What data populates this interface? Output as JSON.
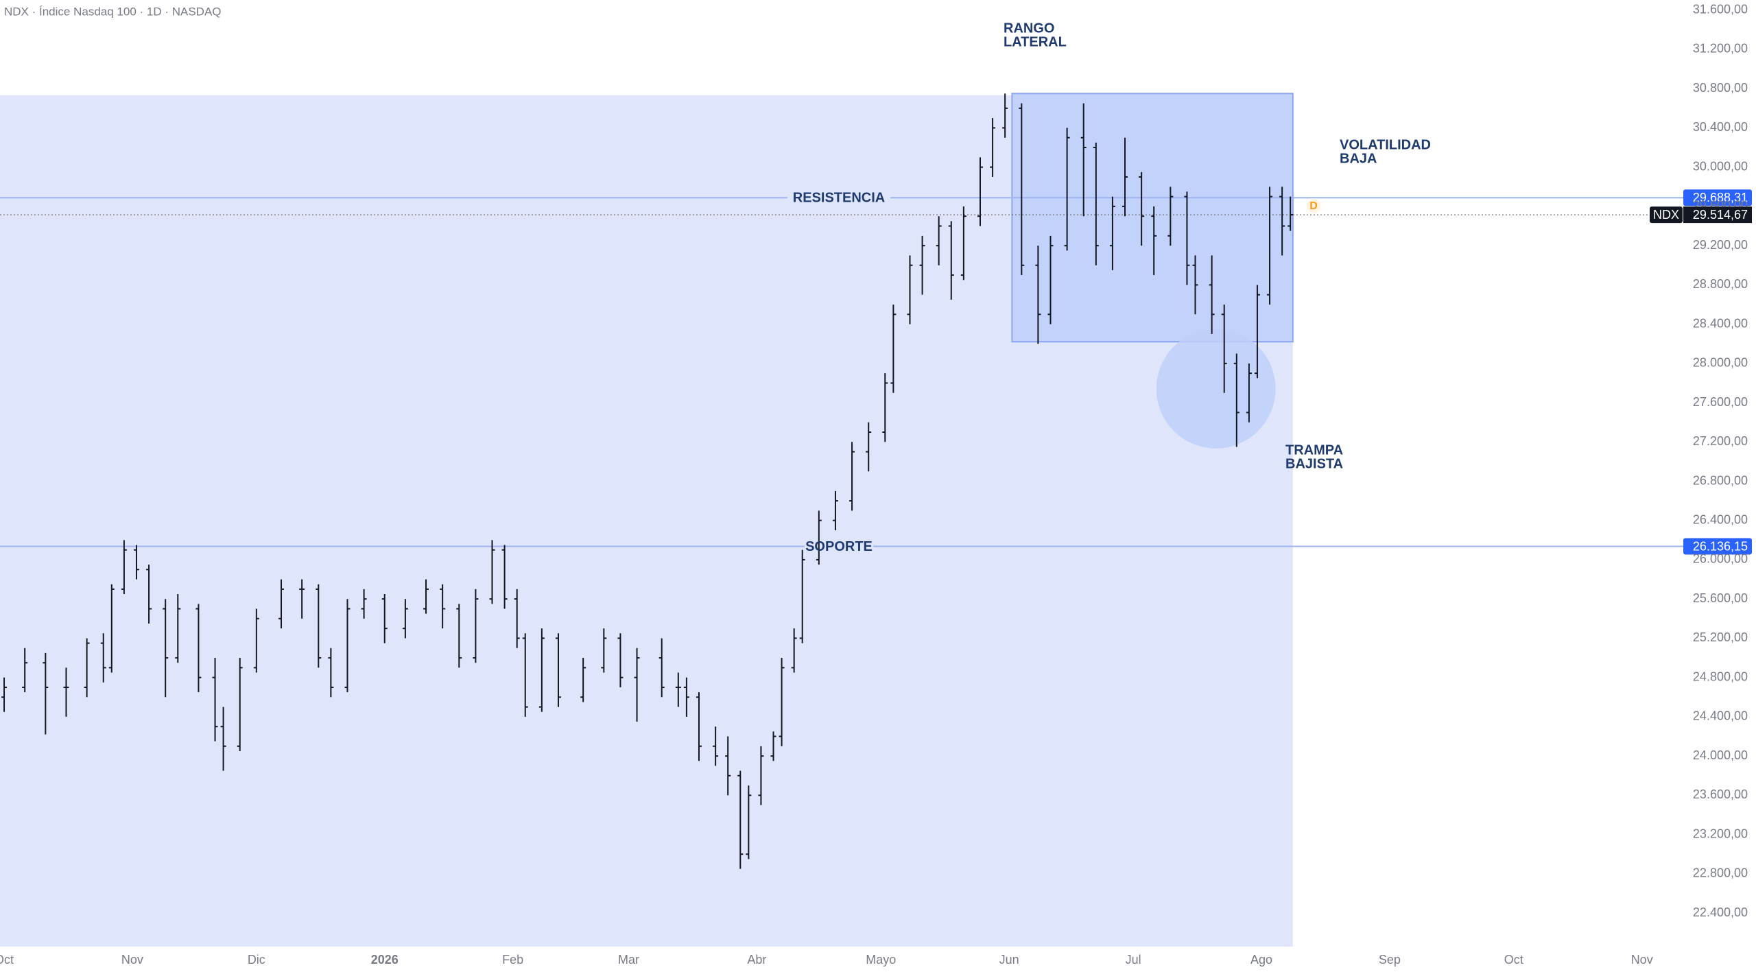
{
  "chart_data": {
    "type": "ohlc",
    "title": "NDX · Índice Nasdaq 100 · 1D · NASDAQ",
    "xlim": [
      -1,
      406
    ],
    "ylim": [
      22058,
      31703
    ],
    "xticks": [
      {
        "value": 0,
        "label": "Oct"
      },
      {
        "value": 31,
        "label": "Nov"
      },
      {
        "value": 61,
        "label": "Dic"
      },
      {
        "value": 92,
        "label": "2026"
      },
      {
        "value": 123,
        "label": "Feb"
      },
      {
        "value": 151,
        "label": "Mar"
      },
      {
        "value": 182,
        "label": "Abr"
      },
      {
        "value": 212,
        "label": "Mayo"
      },
      {
        "value": 243,
        "label": "Jun"
      },
      {
        "value": 273,
        "label": "Jul"
      },
      {
        "value": 304,
        "label": "Ago"
      },
      {
        "value": 335,
        "label": "Sep"
      },
      {
        "value": 365,
        "label": "Oct"
      },
      {
        "value": 396,
        "label": "Nov"
      }
    ],
    "yticks": [
      {
        "value": 31600,
        "label": "31.600,00"
      },
      {
        "value": 31200,
        "label": "31.200,00"
      },
      {
        "value": 30800,
        "label": "30.800,00"
      },
      {
        "value": 30400,
        "label": "30.400,00"
      },
      {
        "value": 30000,
        "label": "30.000,00"
      },
      {
        "value": 29600,
        "label": "29.600,00"
      },
      {
        "value": 29200,
        "label": "29.200,00"
      },
      {
        "value": 28800,
        "label": "28.800,00"
      },
      {
        "value": 28400,
        "label": "28.400,00"
      },
      {
        "value": 28000,
        "label": "28.000,00"
      },
      {
        "value": 27600,
        "label": "27.600,00"
      },
      {
        "value": 27200,
        "label": "27.200,00"
      },
      {
        "value": 26800,
        "label": "26.800,00"
      },
      {
        "value": 26400,
        "label": "26.400,00"
      },
      {
        "value": 26000,
        "label": "26.000,00"
      },
      {
        "value": 25600,
        "label": "25.600,00"
      },
      {
        "value": 25200,
        "label": "25.200,00"
      },
      {
        "value": 24800,
        "label": "24.800,00"
      },
      {
        "value": 24400,
        "label": "24.400,00"
      },
      {
        "value": 24000,
        "label": "24.000,00"
      },
      {
        "value": 23600,
        "label": "23.600,00"
      },
      {
        "value": 23200,
        "label": "23.200,00"
      },
      {
        "value": 22800,
        "label": "22.800,00"
      },
      {
        "value": 22400,
        "label": "22.400,00"
      }
    ],
    "bar_color": "#131722",
    "x": [
      0,
      5,
      10,
      15,
      20,
      24,
      26,
      29,
      32,
      35,
      39,
      42,
      47,
      51,
      53,
      57,
      61,
      67,
      72,
      76,
      79,
      83,
      87,
      92,
      97,
      102,
      106,
      110,
      114,
      118,
      121,
      124,
      126,
      130,
      134,
      140,
      145,
      149,
      153,
      159,
      163,
      165,
      168,
      172,
      175,
      178,
      180,
      183,
      186,
      188,
      191,
      193,
      197,
      201,
      205,
      209,
      213,
      215,
      219,
      222,
      226,
      229,
      232,
      236,
      239,
      242,
      246,
      250,
      253,
      257,
      261,
      264,
      268,
      271,
      275,
      278,
      282,
      286,
      288,
      292,
      295,
      298,
      301,
      303,
      306,
      309,
      311
    ],
    "open": [
      24600,
      24700,
      24950,
      24700,
      24700,
      25150,
      24900,
      25700,
      26100,
      25900,
      25500,
      25000,
      25500,
      24800,
      24300,
      24100,
      24900,
      25400,
      25700,
      25700,
      25000,
      24700,
      25500,
      25600,
      25300,
      25500,
      25700,
      25500,
      25000,
      25600,
      26100,
      25600,
      25200,
      24500,
      25200,
      24600,
      24900,
      25200,
      24800,
      25000,
      24700,
      24700,
      24600,
      24100,
      24000,
      23800,
      23000,
      23600,
      24000,
      24200,
      24900,
      25200,
      26000,
      26400,
      26600,
      27100,
      27300,
      27800,
      28500,
      29000,
      29200,
      29400,
      28900,
      29500,
      30000,
      30400,
      30600,
      29000,
      28500,
      29200,
      30300,
      30200,
      29200,
      29600,
      29900,
      29500,
      29300,
      29700,
      29000,
      28800,
      28500,
      28000,
      27500,
      27900,
      28700,
      29700,
      29400
    ],
    "high": [
      24800,
      25100,
      25050,
      24900,
      25200,
      25250,
      25750,
      26200,
      26150,
      25950,
      25600,
      25650,
      25550,
      25000,
      24500,
      25000,
      25500,
      25800,
      25800,
      25750,
      25100,
      25600,
      25700,
      25650,
      25600,
      25800,
      25750,
      25550,
      25700,
      26200,
      26150,
      25700,
      25250,
      25300,
      25250,
      25000,
      25300,
      25250,
      25100,
      25200,
      24850,
      24800,
      24650,
      24300,
      24200,
      23850,
      23700,
      24100,
      24250,
      25000,
      25300,
      26100,
      26500,
      26700,
      27200,
      27400,
      27900,
      28600,
      29100,
      29300,
      29500,
      29450,
      29600,
      30100,
      30500,
      30750,
      30650,
      29200,
      29300,
      30400,
      30650,
      30250,
      29700,
      30300,
      29950,
      29600,
      29800,
      29750,
      29100,
      29100,
      28600,
      28100,
      28000,
      28800,
      29800,
      29800,
      29700
    ],
    "low": [
      24450,
      24650,
      24220,
      24400,
      24600,
      24750,
      24850,
      25650,
      25800,
      25350,
      24600,
      24950,
      24650,
      24150,
      23850,
      24050,
      24850,
      25300,
      25400,
      24900,
      24600,
      24650,
      25400,
      25150,
      25200,
      25450,
      25300,
      24900,
      24950,
      25550,
      25500,
      25100,
      24400,
      24450,
      24500,
      24550,
      24850,
      24700,
      24350,
      24600,
      24500,
      24400,
      23950,
      23900,
      23600,
      22850,
      22950,
      23500,
      23950,
      24100,
      24850,
      25150,
      25950,
      26300,
      26500,
      26900,
      27200,
      27700,
      28400,
      28700,
      29000,
      28650,
      28850,
      29400,
      29900,
      30300,
      28900,
      28200,
      28400,
      29150,
      29500,
      29000,
      28950,
      29500,
      29200,
      28900,
      29200,
      28800,
      28500,
      28300,
      27700,
      27150,
      27400,
      27850,
      28600,
      29100,
      29350
    ],
    "close": [
      24700,
      24950,
      24700,
      24700,
      25150,
      24900,
      25700,
      26100,
      25900,
      25500,
      25000,
      25500,
      24800,
      24300,
      24100,
      24900,
      25400,
      25700,
      25700,
      25000,
      24700,
      25500,
      25600,
      25300,
      25500,
      25700,
      25500,
      25000,
      25600,
      26100,
      25600,
      25200,
      24500,
      25200,
      24600,
      24900,
      25200,
      24800,
      25000,
      24700,
      24700,
      24600,
      24100,
      24000,
      23800,
      23000,
      23600,
      24000,
      24200,
      24900,
      25200,
      26000,
      26400,
      26600,
      27100,
      27300,
      27800,
      28500,
      29000,
      29200,
      29400,
      28900,
      29500,
      30000,
      30400,
      30600,
      29000,
      28500,
      29200,
      30300,
      30200,
      29200,
      29600,
      29900,
      29500,
      29300,
      29700,
      29000,
      28800,
      28500,
      28000,
      27500,
      27900,
      28700,
      29700,
      29400,
      29514.67
    ],
    "zone": {
      "x_end": 311.6,
      "top": 30733,
      "color": "#dfe6fb"
    },
    "range_box": {
      "x": [
        243.7,
        311.6
      ],
      "price": [
        28221,
        30750
      ],
      "color": "#c3d2fa",
      "border": "#8aa5f2"
    },
    "trap_circle": {
      "x": 293,
      "price": 27742,
      "color": "#bfcff8"
    },
    "levels": [
      {
        "name": "RESISTENCIA",
        "value": 29688.31,
        "label": "29.688,31"
      },
      {
        "name": "SOPORTE",
        "value": 26136.15,
        "label": "26.136,15"
      }
    ],
    "level_color": "#2962ff",
    "last_price": {
      "symbol": "NDX",
      "value": 29514.67,
      "label": "29.514,67"
    },
    "marker": "D",
    "annotations": [
      [
        "RANGO",
        "LATERAL"
      ],
      [
        "VOLATILIDAD",
        "BAJA"
      ],
      [
        "TRAMPA",
        "BAJISTA"
      ]
    ]
  }
}
